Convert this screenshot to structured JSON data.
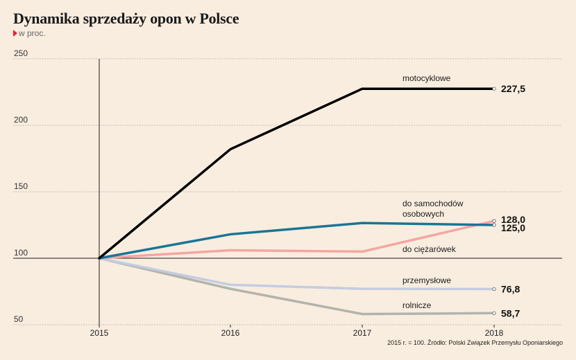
{
  "header": {
    "title": "Dynamika sprzedaży opon w Polsce",
    "subtitle": "w proc."
  },
  "source": "2015 r. = 100. Źródło: Polski Związek Przemysłu Oponiarskiego",
  "chart_data": {
    "type": "line",
    "title": "Dynamika sprzedaży opon w Polsce",
    "subtitle": "w proc.",
    "x": [
      "2015",
      "2016",
      "2017",
      "2018"
    ],
    "ylim": [
      50,
      250
    ],
    "yticks": [
      50,
      100,
      150,
      200,
      250
    ],
    "grid": "horizontal dotted",
    "series": [
      {
        "name": "motocyklowe",
        "color": "#000000",
        "values": [
          100,
          182,
          227.5,
          227.5
        ],
        "end_label": "227,5"
      },
      {
        "name": "do samochodów osobowych",
        "color": "#1a7595",
        "values": [
          100,
          118,
          126.5,
          125.0
        ],
        "end_label": "125,0"
      },
      {
        "name": "do ciężarówek",
        "color": "#f4a6a0",
        "values": [
          100,
          106,
          105,
          128.0
        ],
        "end_label": "128,0"
      },
      {
        "name": "przemysłowe",
        "color": "#c3cde0",
        "values": [
          100,
          80,
          77,
          76.8
        ],
        "end_label": "76,8"
      },
      {
        "name": "rolnicze",
        "color": "#b3b3ab",
        "values": [
          100,
          77,
          58,
          58.7
        ],
        "end_label": "58,7"
      }
    ]
  }
}
